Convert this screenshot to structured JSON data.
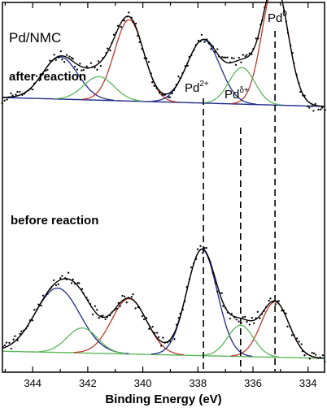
{
  "chart_data": {
    "type": "line",
    "title": "Pd/NMC",
    "xlabel": "Binding Energy (eV)",
    "ylabel": "",
    "x_reversed": true,
    "xlim": [
      345.1,
      333.4
    ],
    "ylim": [
      0,
      100
    ],
    "x_ticks": [
      344,
      342,
      340,
      338,
      336,
      334
    ],
    "x_tick_labels": [
      "344",
      "342",
      "340",
      "338",
      "336",
      "334"
    ],
    "colors": {
      "envelope": "#000000",
      "points": "#000000",
      "pd0": "#c0392b",
      "pd2plus": "#1f2a8a",
      "pddelta": "#5cb85c",
      "background_after": "#1f2a8a",
      "background_before": "#5cb85c"
    },
    "peak_markers": [
      {
        "label_main": "Pd",
        "label_sup": "0",
        "x": 335.2
      },
      {
        "label_main": "Pd",
        "label_sup": "2+",
        "x": 337.8
      },
      {
        "label_main": "Pd",
        "label_sup": "δ+",
        "x": 336.45
      }
    ],
    "panels": [
      {
        "label": "after reaction",
        "background": {
          "color": "background_after",
          "left": 61,
          "right": 50
        },
        "peaks": [
          {
            "state": "Pd0",
            "color": "pd0",
            "center": 340.5,
            "height": 100,
            "fwhm": 1.25
          },
          {
            "state": "Pd0",
            "color": "pd0",
            "center": 335.2,
            "height": 150,
            "fwhm": 1.1
          },
          {
            "state": "Pd2+",
            "color": "pd2plus",
            "center": 343.0,
            "height": 52,
            "fwhm": 1.5
          },
          {
            "state": "Pd2+",
            "color": "pd2plus",
            "center": 337.8,
            "height": 78,
            "fwhm": 1.4
          },
          {
            "state": "Pdδ+",
            "color": "pddelta",
            "center": 341.6,
            "height": 29,
            "fwhm": 1.3
          },
          {
            "state": "Pdδ+",
            "color": "pddelta",
            "center": 336.4,
            "height": 45,
            "fwhm": 1.1
          }
        ]
      },
      {
        "label": "before reaction",
        "background": {
          "color": "background_before",
          "left": 8,
          "right": 0
        },
        "peaks": [
          {
            "state": "Pd0",
            "color": "pd0",
            "center": 340.5,
            "height": 62,
            "fwhm": 1.5
          },
          {
            "state": "Pd0",
            "color": "pd0",
            "center": 335.2,
            "height": 62,
            "fwhm": 1.2
          },
          {
            "state": "Pd2+",
            "color": "pd2plus",
            "center": 343.1,
            "height": 72,
            "fwhm": 1.9
          },
          {
            "state": "Pd2+",
            "color": "pd2plus",
            "center": 337.85,
            "height": 119,
            "fwhm": 1.3
          },
          {
            "state": "Pdδ+",
            "color": "pddelta",
            "center": 342.2,
            "height": 28,
            "fwhm": 1.3
          },
          {
            "state": "Pdδ+",
            "color": "pddelta",
            "center": 336.45,
            "height": 35,
            "fwhm": 1.1
          }
        ]
      }
    ]
  }
}
